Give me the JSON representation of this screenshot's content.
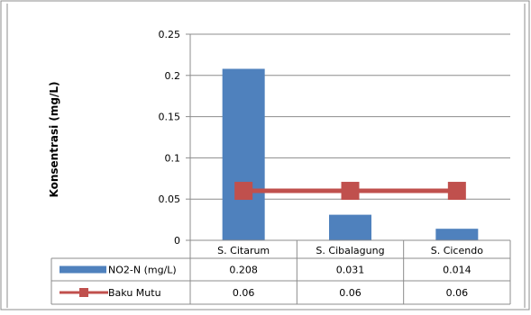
{
  "chart_data": {
    "type": "bar",
    "categories": [
      "S. Citarum",
      "S. Cibalagung",
      "S. Cicendo"
    ],
    "series": [
      {
        "name": "NO2-N (mg/L)",
        "type": "bar",
        "values": [
          0.208,
          0.031,
          0.014
        ],
        "value_labels": [
          "0.208",
          "0.031",
          "0.014"
        ],
        "color": "#4F81BD"
      },
      {
        "name": "Baku Mutu",
        "type": "line",
        "values": [
          0.06,
          0.06,
          0.06
        ],
        "value_labels": [
          "0.06",
          "0.06",
          "0.06"
        ],
        "color": "#C0504D"
      }
    ],
    "ylabel": "Konsentrasi (mg/L)",
    "ylim": [
      0,
      0.25
    ],
    "yticks": [
      0,
      0.05,
      0.1,
      0.15,
      0.2,
      0.25
    ],
    "ytick_labels": [
      "0",
      "0.05",
      "0.1",
      "0.15",
      "0.2",
      "0.25"
    ],
    "grid": "horizontal",
    "legend": "data-table"
  }
}
